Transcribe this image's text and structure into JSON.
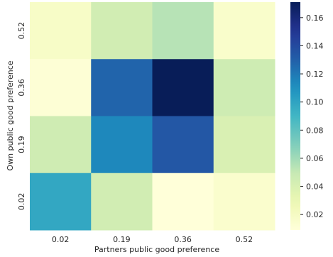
{
  "chart_data": {
    "type": "heatmap",
    "title": "",
    "xlabel": "Partners public good preference",
    "ylabel": "Own public good preference",
    "x_categories": [
      "0.02",
      "0.19",
      "0.36",
      "0.52"
    ],
    "y_categories_top_to_bottom": [
      "0.52",
      "0.36",
      "0.19",
      "0.02"
    ],
    "values_top_to_bottom": [
      [
        0.018,
        0.044,
        0.054,
        0.016
      ],
      [
        0.011,
        0.128,
        0.171,
        0.046
      ],
      [
        0.045,
        0.114,
        0.134,
        0.04
      ],
      [
        0.098,
        0.044,
        0.009,
        0.015
      ]
    ],
    "colormap": "YlGnBu",
    "vmin": 0.009,
    "vmax": 0.171,
    "colorbar": {
      "ticks": [
        0.02,
        0.04,
        0.06,
        0.08,
        0.1,
        0.12,
        0.14,
        0.16
      ],
      "tick_labels": [
        "0.02",
        "0.04",
        "0.06",
        "0.08",
        "0.10",
        "0.12",
        "0.14",
        "0.16"
      ],
      "placement": "right"
    },
    "grid": false
  }
}
